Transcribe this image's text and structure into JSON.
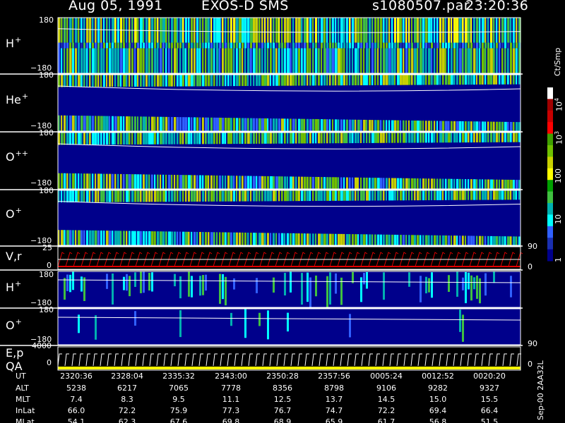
{
  "header": {
    "date": "Aug 05, 1991",
    "instrument": "EXOS-D SMS",
    "file": "s1080507.par",
    "time": "23:20:36"
  },
  "panels": [
    {
      "id": "h-plus",
      "label": "H",
      "sup": "+",
      "top_tick": "180",
      "bottom_tick": "−180"
    },
    {
      "id": "he-plus",
      "label": "He",
      "sup": "+",
      "top_tick": "180",
      "bottom_tick": "−180"
    },
    {
      "id": "o-plus-plus",
      "label": "O",
      "sup": "++",
      "top_tick": "180",
      "bottom_tick": "−180"
    },
    {
      "id": "o-plus",
      "label": "O",
      "sup": "+",
      "top_tick": "180",
      "bottom_tick": "−180"
    },
    {
      "id": "vr",
      "label": "V,r",
      "sup": "",
      "top_tick": "25",
      "bottom_tick": "0",
      "right_top": "90",
      "right_bottom": "0"
    },
    {
      "id": "h-plus-2",
      "label": "H",
      "sup": "+",
      "top_tick": "180",
      "bottom_tick": "−180"
    },
    {
      "id": "o-plus-2",
      "label": "O",
      "sup": "+",
      "top_tick": "180",
      "bottom_tick": "−180",
      "right_bottom": "90"
    },
    {
      "id": "ep",
      "label": "E,p",
      "label2": "QA",
      "sup": "",
      "top_tick": "4000",
      "bottom_tick": "0",
      "right_bottom": "0"
    }
  ],
  "colorbar": {
    "unit_label": "Ct/Smp",
    "ticks": [
      {
        "text": "10",
        "sup": "4"
      },
      {
        "text": "10",
        "sup": "3"
      },
      {
        "text": "100",
        "sup": ""
      },
      {
        "text": "10",
        "sup": ""
      },
      {
        "text": "1",
        "sup": ""
      }
    ],
    "colors": [
      "#ffffff",
      "#a00000",
      "#c80000",
      "#ff0000",
      "#40a000",
      "#70c000",
      "#c8d000",
      "#ffff00",
      "#00a000",
      "#40c040",
      "#00b0b0",
      "#00ffff",
      "#3060ff",
      "#1a2fb0",
      "#00008b"
    ]
  },
  "footer": {
    "rows": [
      {
        "label": "UT",
        "values": [
          "2320:36",
          "2328:04",
          "2335:32",
          "2343:00",
          "2350:28",
          "2357:56",
          "0005:24",
          "0012:52",
          "0020:20"
        ]
      },
      {
        "label": "ALT",
        "values": [
          "5238",
          "6217",
          "7065",
          "7778",
          "8356",
          "8798",
          "9106",
          "9282",
          "9327"
        ]
      },
      {
        "label": "MLT",
        "values": [
          "7.4",
          "8.3",
          "9.5",
          "11.1",
          "12.5",
          "13.7",
          "14.5",
          "15.0",
          "15.5"
        ]
      },
      {
        "label": "InLat",
        "values": [
          "66.0",
          "72.2",
          "75.9",
          "77.3",
          "76.7",
          "74.7",
          "72.2",
          "69.4",
          "66.4"
        ]
      },
      {
        "label": "MLat",
        "values": [
          "54.1",
          "62.3",
          "67.6",
          "69.8",
          "68.9",
          "65.9",
          "61.7",
          "56.8",
          "51.5"
        ]
      }
    ],
    "side_label": "Sep-00  2AA32L"
  }
}
